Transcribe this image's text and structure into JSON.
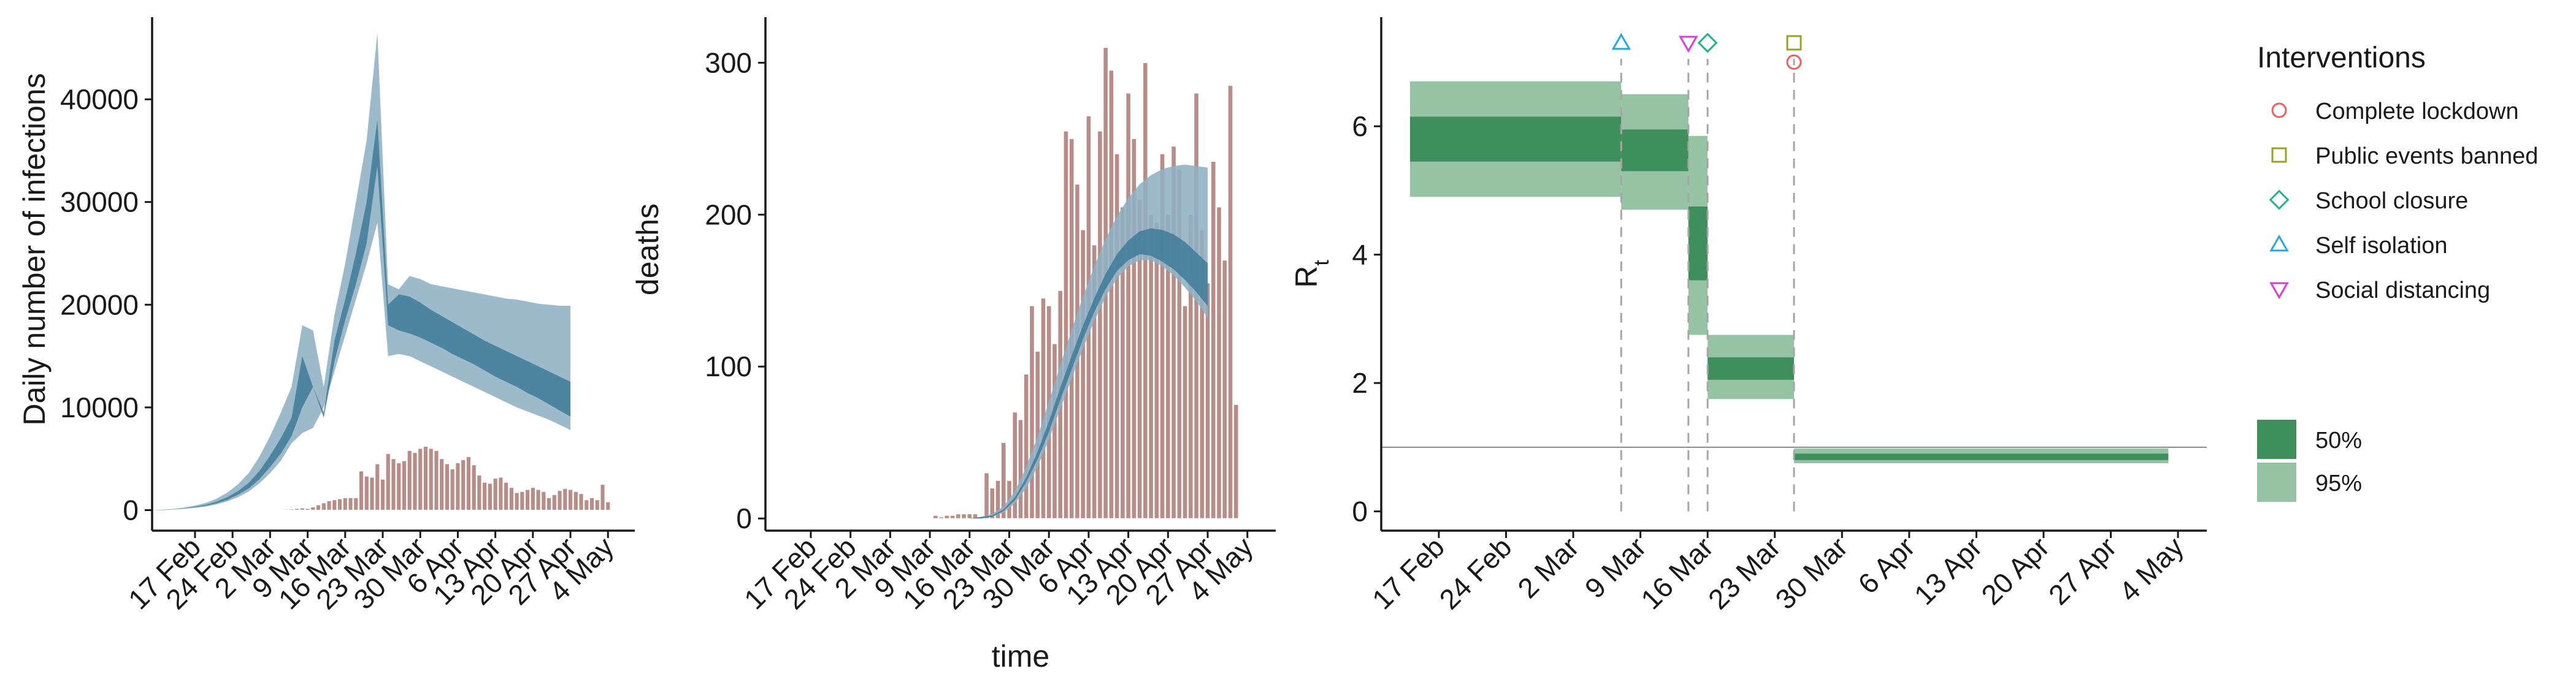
{
  "colors": {
    "bars": "#b98d87",
    "band95_infections": "#8fb0c4",
    "band50_infections": "#3f7a99",
    "band95_green": "#96c3a4",
    "band50_green": "#3f8f5c",
    "lockdown": "#f0605d",
    "public_events": "#9aa320",
    "school": "#1fb58a",
    "self_isolation": "#26a7e0",
    "social_distancing": "#de3ad8"
  },
  "chart_data": [
    {
      "type": "area",
      "ylabel": "Daily number of infections",
      "xlabel": "",
      "ylim": [
        -2000,
        48000
      ],
      "yticks": [
        0,
        10000,
        20000,
        30000,
        40000
      ],
      "xticks": [
        "17 Feb",
        "24 Feb",
        "2 Mar",
        "9 Mar",
        "16 Mar",
        "23 Mar",
        "30 Mar",
        "6 Apr",
        "13 Apr",
        "20 Apr",
        "27 Apr",
        "4 May"
      ],
      "x_start": "2020-02-09",
      "bars": [
        0,
        0,
        0,
        0,
        0,
        0,
        0,
        0,
        0,
        0,
        0,
        0,
        0,
        0,
        0,
        0,
        0,
        0,
        0,
        0,
        0,
        0,
        0,
        0,
        0,
        80,
        100,
        150,
        200,
        150,
        300,
        500,
        700,
        900,
        1000,
        1100,
        1200,
        1200,
        1200,
        3800,
        3300,
        3200,
        4500,
        3000,
        5500,
        5000,
        4600,
        4800,
        5800,
        5600,
        6000,
        6200,
        6000,
        5800,
        5000,
        4500,
        4000,
        4600,
        4900,
        5200,
        4400,
        3400,
        2700,
        2600,
        3100,
        3200,
        2700,
        2200,
        1700,
        1800,
        2000,
        2200,
        2000,
        1800,
        1200,
        1500,
        1900,
        2100,
        2000,
        1800,
        1600,
        1000,
        1200,
        1000,
        2500,
        800
      ],
      "band95_upper": [
        0,
        50,
        120,
        250,
        450,
        700,
        1100,
        1700,
        2500,
        3600,
        5200,
        7200,
        9500,
        12000,
        18000,
        17500,
        12000,
        19000,
        24000,
        30000,
        36000,
        46500,
        22000,
        21500,
        22800,
        22500,
        22000,
        21800,
        21600,
        21400,
        21200,
        21000,
        20800,
        20600,
        20500,
        20300,
        20100,
        20000,
        19900,
        19900
      ],
      "band95_lower": [
        0,
        0,
        60,
        130,
        220,
        350,
        550,
        850,
        1250,
        1800,
        2600,
        3600,
        4800,
        6500,
        7500,
        8000,
        10000,
        13500,
        17000,
        20500,
        24000,
        28000,
        15000,
        15200,
        15000,
        14500,
        14000,
        13500,
        13000,
        12500,
        12000,
        11500,
        11000,
        10500,
        10000,
        9600,
        9200,
        8800,
        8300,
        7800
      ],
      "band50_upper": [
        0,
        30,
        90,
        180,
        330,
        520,
        820,
        1250,
        1850,
        2650,
        3800,
        5300,
        7000,
        9000,
        15000,
        12000,
        9500,
        16500,
        20500,
        25000,
        30000,
        38000,
        20000,
        21000,
        20800,
        20200,
        19500,
        18900,
        18300,
        17700,
        17100,
        16500,
        16000,
        15500,
        15000,
        14500,
        14000,
        13500,
        13000,
        12500
      ],
      "band50_lower": [
        0,
        10,
        70,
        150,
        270,
        420,
        660,
        1000,
        1500,
        2100,
        3000,
        4200,
        5500,
        7200,
        10000,
        12000,
        9000,
        14500,
        18500,
        22000,
        26000,
        33500,
        18000,
        17500,
        17200,
        16800,
        16300,
        15800,
        15200,
        14700,
        14200,
        13600,
        13000,
        12500,
        12000,
        11400,
        10900,
        10300,
        9700,
        9100
      ]
    },
    {
      "type": "area",
      "ylabel": "deaths",
      "xlabel": "time",
      "ylim": [
        -8,
        330
      ],
      "yticks": [
        0,
        100,
        200,
        300
      ],
      "xticks": [
        "17 Feb",
        "24 Feb",
        "2 Mar",
        "9 Mar",
        "16 Mar",
        "23 Mar",
        "30 Mar",
        "6 Apr",
        "13 Apr",
        "20 Apr",
        "27 Apr",
        "4 May"
      ],
      "x_start": "2020-02-09",
      "bars": [
        0,
        0,
        0,
        0,
        0,
        0,
        0,
        0,
        0,
        0,
        0,
        0,
        0,
        0,
        0,
        0,
        0,
        0,
        0,
        0,
        0,
        0,
        0,
        0,
        0,
        0,
        0,
        0,
        0,
        0,
        2,
        1,
        2,
        2,
        3,
        3,
        3,
        3,
        0,
        30,
        20,
        25,
        50,
        25,
        70,
        65,
        95,
        140,
        110,
        145,
        140,
        115,
        150,
        255,
        250,
        220,
        190,
        265,
        180,
        255,
        310,
        295,
        240,
        205,
        280,
        250,
        210,
        300,
        200,
        195,
        240,
        200,
        245,
        230,
        140,
        200,
        280,
        190,
        155,
        235,
        205,
        170,
        285,
        75
      ],
      "band95_upper": [
        0,
        0,
        0,
        0,
        0,
        0,
        0,
        0,
        0,
        0,
        0,
        0,
        0,
        0,
        0,
        0,
        0,
        0,
        0,
        1,
        3,
        8,
        18,
        34,
        54,
        77,
        101,
        124,
        146,
        166,
        184,
        199,
        211,
        220,
        226,
        230,
        232,
        233,
        232,
        231
      ],
      "band95_lower": [
        0,
        0,
        0,
        0,
        0,
        0,
        0,
        0,
        0,
        0,
        0,
        0,
        0,
        0,
        0,
        0,
        0,
        0,
        0,
        0,
        1,
        4,
        10,
        20,
        34,
        52,
        72,
        92,
        112,
        130,
        146,
        158,
        166,
        170,
        170,
        166,
        160,
        152,
        143,
        132
      ],
      "band50_upper": [
        0,
        0,
        0,
        0,
        0,
        0,
        0,
        0,
        0,
        0,
        0,
        0,
        0,
        0,
        0,
        0,
        0,
        0,
        0,
        1,
        2,
        6,
        14,
        27,
        44,
        64,
        86,
        107,
        127,
        145,
        161,
        174,
        183,
        189,
        191,
        190,
        187,
        182,
        175,
        168
      ],
      "band50_lower": [
        0,
        0,
        0,
        0,
        0,
        0,
        0,
        0,
        0,
        0,
        0,
        0,
        0,
        0,
        0,
        0,
        0,
        0,
        0,
        0,
        1,
        5,
        12,
        24,
        39,
        57,
        78,
        98,
        118,
        136,
        151,
        163,
        170,
        174,
        173,
        169,
        164,
        157,
        149,
        140
      ]
    },
    {
      "type": "area",
      "ylabel": "R",
      "ylabel_sub": "t",
      "xlabel": "",
      "ylim": [
        -0.3,
        7.7
      ],
      "yticks": [
        0,
        2,
        4,
        6
      ],
      "xticks": [
        "17 Feb",
        "24 Feb",
        "2 Mar",
        "9 Mar",
        "16 Mar",
        "23 Mar",
        "30 Mar",
        "6 Apr",
        "13 Apr",
        "20 Apr",
        "27 Apr",
        "4 May"
      ],
      "x_start": "2020-02-14",
      "reference_line": 1,
      "segments": [
        {
          "start": "2020-02-14",
          "end": "2020-03-07",
          "lo95": 4.9,
          "hi95": 6.7,
          "lo50": 5.45,
          "hi50": 6.15
        },
        {
          "start": "2020-03-07",
          "end": "2020-03-14",
          "lo95": 4.7,
          "hi95": 6.5,
          "lo50": 5.3,
          "hi50": 5.95
        },
        {
          "start": "2020-03-14",
          "end": "2020-03-16",
          "lo95": 2.75,
          "hi95": 5.85,
          "lo50": 3.6,
          "hi50": 4.75
        },
        {
          "start": "2020-03-16",
          "end": "2020-03-25",
          "lo95": 1.75,
          "hi95": 2.75,
          "lo50": 2.05,
          "hi50": 2.4
        },
        {
          "start": "2020-03-25",
          "end": "2020-05-03",
          "lo95": 0.75,
          "hi95": 0.98,
          "lo50": 0.8,
          "hi50": 0.9
        }
      ],
      "interventions": [
        {
          "key": "self_isolation",
          "date": "2020-03-07",
          "y": 7.3,
          "shape": "triangle-up"
        },
        {
          "key": "social_distancing",
          "date": "2020-03-14",
          "y": 7.3,
          "shape": "triangle-down"
        },
        {
          "key": "school",
          "date": "2020-03-16",
          "y": 7.3,
          "shape": "diamond"
        },
        {
          "key": "public_events",
          "date": "2020-03-25",
          "y": 7.3,
          "shape": "square"
        },
        {
          "key": "lockdown",
          "date": "2020-03-25",
          "y": 7.0,
          "shape": "circle"
        }
      ],
      "legend": {
        "title": "Interventions",
        "items": [
          {
            "label": "Complete lockdown",
            "key": "lockdown",
            "shape": "circle"
          },
          {
            "label": "Public events banned",
            "key": "public_events",
            "shape": "square"
          },
          {
            "label": "School closure",
            "key": "school",
            "shape": "diamond"
          },
          {
            "label": "Self isolation",
            "key": "self_isolation",
            "shape": "triangle-up"
          },
          {
            "label": "Social distancing",
            "key": "social_distancing",
            "shape": "triangle-down"
          }
        ],
        "bands": [
          {
            "label": "50%",
            "key": "band50_green"
          },
          {
            "label": "95%",
            "key": "band95_green"
          }
        ],
        "placement": "right"
      }
    }
  ]
}
